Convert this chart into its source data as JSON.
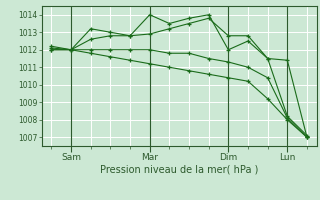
{
  "bg_color": "#cce8d4",
  "grid_color": "#ffffff",
  "line_color": "#1a6b1a",
  "marker_color": "#1a6b1a",
  "xlabel": "Pression niveau de la mer( hPa )",
  "yticks": [
    1007,
    1008,
    1009,
    1010,
    1011,
    1012,
    1013,
    1014
  ],
  "ylim": [
    1006.5,
    1014.5
  ],
  "xtick_labels": [
    "Sam",
    "Mar",
    "Dim",
    "Lun"
  ],
  "xtick_positions": [
    1,
    5,
    9,
    12
  ],
  "n_points": 14,
  "series": [
    [
      1012.0,
      1012.0,
      1013.2,
      1013.0,
      1012.8,
      1012.9,
      1013.2,
      1013.5,
      1013.8,
      1012.8,
      1012.8,
      1011.5,
      1011.4,
      1007.0
    ],
    [
      1012.1,
      1012.0,
      1012.6,
      1012.8,
      1012.8,
      1014.0,
      1013.5,
      1013.8,
      1014.0,
      1012.0,
      1012.5,
      1011.5,
      1008.2,
      1007.1
    ],
    [
      1012.2,
      1012.0,
      1012.0,
      1012.0,
      1012.0,
      1012.0,
      1011.8,
      1011.8,
      1011.5,
      1011.3,
      1011.0,
      1010.4,
      1008.1,
      1007.0
    ],
    [
      1012.0,
      1012.0,
      1011.8,
      1011.6,
      1011.4,
      1011.2,
      1011.0,
      1010.8,
      1010.6,
      1010.4,
      1010.2,
      1009.2,
      1008.0,
      1007.0
    ]
  ]
}
